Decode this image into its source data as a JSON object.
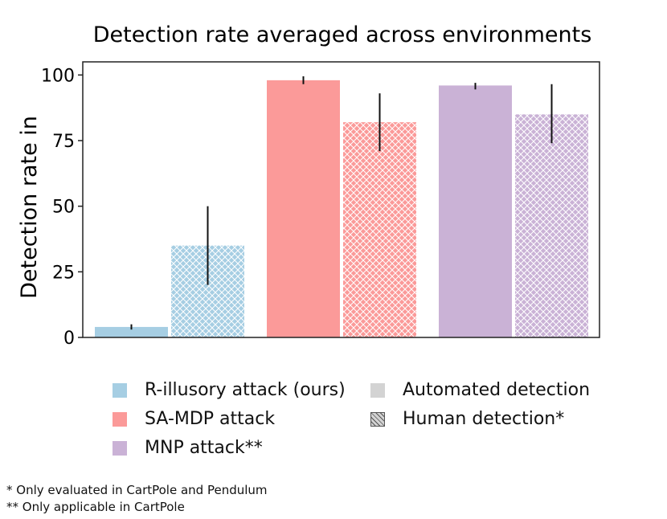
{
  "chart_data": {
    "type": "bar",
    "title": "Detection rate averaged across environments",
    "xlabel": "",
    "ylabel": "Detection rate in",
    "ylim": [
      0,
      105
    ],
    "yticks": [
      0,
      25,
      50,
      75,
      100
    ],
    "grid": false,
    "series": [
      {
        "name": "R-illusory attack (ours)",
        "color": "#a6cee3",
        "automated": {
          "value": 4,
          "err_low": 3,
          "err_high": 5
        },
        "human": {
          "value": 35,
          "err_low": 20,
          "err_high": 50
        }
      },
      {
        "name": "SA-MDP attack",
        "color": "#fb9a99",
        "automated": {
          "value": 98,
          "err_low": 96.5,
          "err_high": 99.5
        },
        "human": {
          "value": 82,
          "err_low": 71,
          "err_high": 93
        }
      },
      {
        "name": "MNP attack**",
        "color": "#cab2d6",
        "automated": {
          "value": 96,
          "err_low": 94.5,
          "err_high": 97
        },
        "human": {
          "value": 85,
          "err_low": 74,
          "err_high": 96.5
        }
      }
    ],
    "detection_types": [
      "Automated detection",
      "Human detection*"
    ]
  },
  "legend": {
    "attacks": [
      {
        "label": "R-illusory attack (ours)",
        "color": "#a6cee3"
      },
      {
        "label": "SA-MDP attack",
        "color": "#fb9a99"
      },
      {
        "label": "MNP attack**",
        "color": "#cab2d6"
      }
    ],
    "types": [
      {
        "label": "Automated detection",
        "color": "#d3d3d3",
        "hatched": false
      },
      {
        "label": "Human detection*",
        "color": "#d3d3d3",
        "hatched": true
      }
    ]
  },
  "footnotes": [
    "* Only evaluated in CartPole and Pendulum",
    "** Only applicable in CartPole"
  ]
}
